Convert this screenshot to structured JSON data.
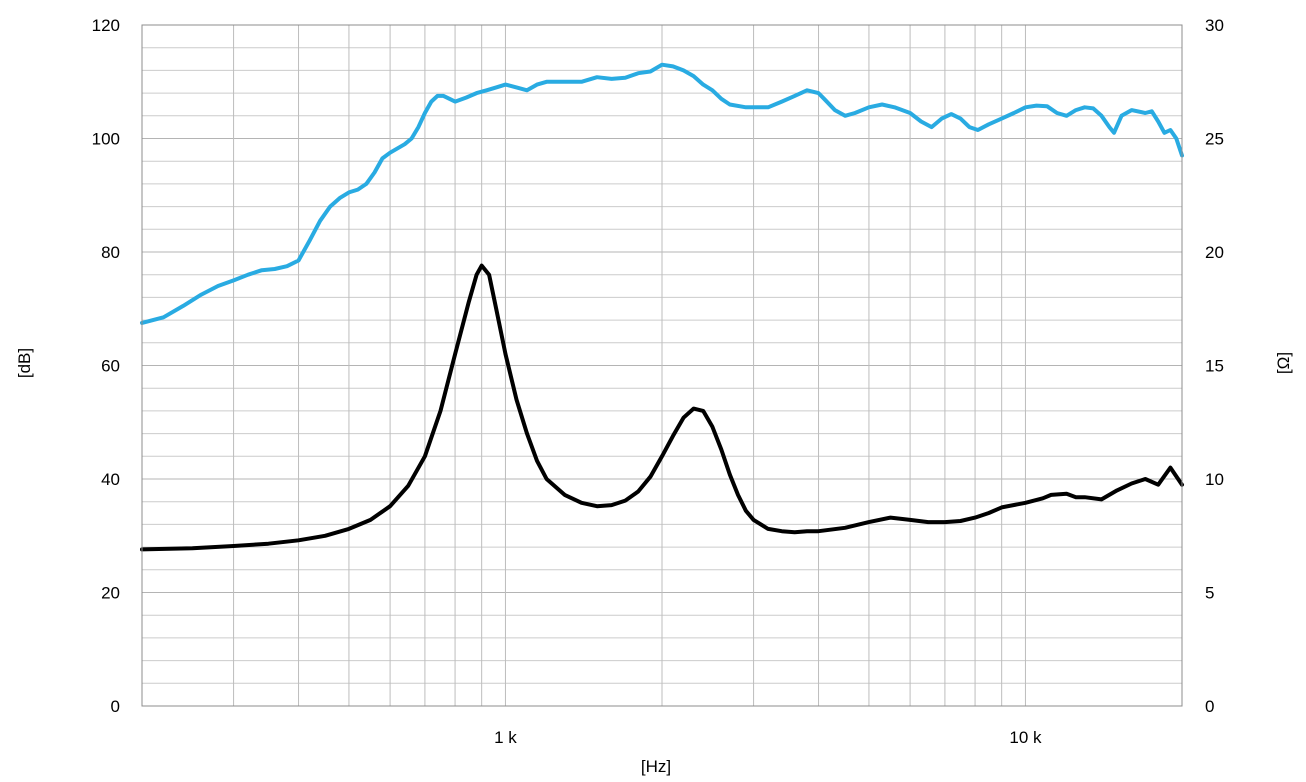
{
  "chart_data": {
    "type": "line",
    "title": "",
    "xlabel": "[Hz]",
    "ylabel_left": "[dB]",
    "ylabel_right": "[Ω]",
    "x_scale": "log",
    "xlim": [
      200,
      20000
    ],
    "ylim_left": [
      0,
      120
    ],
    "ylim_right": [
      0,
      30
    ],
    "grid": true,
    "legend": "none",
    "x_tick_labels": [
      {
        "value": 1000,
        "label": "1 k"
      },
      {
        "value": 10000,
        "label": "10 k"
      }
    ],
    "y_left_ticks": [
      0,
      20,
      40,
      60,
      80,
      100,
      120
    ],
    "y_right_ticks": [
      0,
      5,
      10,
      15,
      20,
      25,
      30
    ],
    "series": [
      {
        "axis": "left",
        "color": "#29abe2",
        "points": [
          [
            200,
            67.5
          ],
          [
            220,
            68.5
          ],
          [
            240,
            70.5
          ],
          [
            260,
            72.5
          ],
          [
            280,
            74
          ],
          [
            300,
            75
          ],
          [
            320,
            76
          ],
          [
            340,
            76.8
          ],
          [
            360,
            77
          ],
          [
            380,
            77.5
          ],
          [
            400,
            78.5
          ],
          [
            420,
            82
          ],
          [
            440,
            85.5
          ],
          [
            460,
            88
          ],
          [
            480,
            89.5
          ],
          [
            500,
            90.5
          ],
          [
            520,
            91
          ],
          [
            540,
            92
          ],
          [
            560,
            94
          ],
          [
            580,
            96.5
          ],
          [
            600,
            97.5
          ],
          [
            640,
            99
          ],
          [
            660,
            100
          ],
          [
            680,
            102
          ],
          [
            700,
            104.5
          ],
          [
            720,
            106.5
          ],
          [
            740,
            107.5
          ],
          [
            760,
            107.5
          ],
          [
            800,
            106.5
          ],
          [
            840,
            107.2
          ],
          [
            880,
            108
          ],
          [
            920,
            108.5
          ],
          [
            960,
            109
          ],
          [
            1000,
            109.5
          ],
          [
            1050,
            109
          ],
          [
            1100,
            108.5
          ],
          [
            1150,
            109.5
          ],
          [
            1200,
            110
          ],
          [
            1300,
            110
          ],
          [
            1400,
            110
          ],
          [
            1500,
            110.8
          ],
          [
            1600,
            110.5
          ],
          [
            1700,
            110.7
          ],
          [
            1800,
            111.5
          ],
          [
            1900,
            111.8
          ],
          [
            2000,
            113
          ],
          [
            2100,
            112.7
          ],
          [
            2200,
            112
          ],
          [
            2300,
            111
          ],
          [
            2400,
            109.5
          ],
          [
            2500,
            108.5
          ],
          [
            2600,
            107
          ],
          [
            2700,
            106
          ],
          [
            2900,
            105.5
          ],
          [
            3000,
            105.5
          ],
          [
            3200,
            105.5
          ],
          [
            3400,
            106.5
          ],
          [
            3600,
            107.5
          ],
          [
            3800,
            108.5
          ],
          [
            4000,
            108
          ],
          [
            4100,
            107
          ],
          [
            4300,
            105
          ],
          [
            4500,
            104
          ],
          [
            4700,
            104.5
          ],
          [
            5000,
            105.5
          ],
          [
            5300,
            106
          ],
          [
            5600,
            105.5
          ],
          [
            6000,
            104.5
          ],
          [
            6300,
            103
          ],
          [
            6600,
            102
          ],
          [
            6900,
            103.5
          ],
          [
            7200,
            104.3
          ],
          [
            7500,
            103.5
          ],
          [
            7800,
            102
          ],
          [
            8100,
            101.5
          ],
          [
            8500,
            102.5
          ],
          [
            9000,
            103.5
          ],
          [
            9500,
            104.5
          ],
          [
            10000,
            105.5
          ],
          [
            10500,
            105.8
          ],
          [
            11000,
            105.7
          ],
          [
            11500,
            104.5
          ],
          [
            12000,
            104
          ],
          [
            12500,
            105
          ],
          [
            13000,
            105.5
          ],
          [
            13500,
            105.3
          ],
          [
            14000,
            104
          ],
          [
            14500,
            102
          ],
          [
            14800,
            101
          ],
          [
            15300,
            104
          ],
          [
            16000,
            105
          ],
          [
            17000,
            104.5
          ],
          [
            17500,
            104.8
          ],
          [
            18000,
            103
          ],
          [
            18500,
            101
          ],
          [
            19000,
            101.5
          ],
          [
            19500,
            100
          ],
          [
            20000,
            97
          ]
        ]
      },
      {
        "axis": "right",
        "color": "#000000",
        "points": [
          [
            200,
            6.9
          ],
          [
            250,
            6.95
          ],
          [
            300,
            7.05
          ],
          [
            350,
            7.15
          ],
          [
            400,
            7.3
          ],
          [
            450,
            7.5
          ],
          [
            500,
            7.8
          ],
          [
            550,
            8.2
          ],
          [
            600,
            8.8
          ],
          [
            650,
            9.7
          ],
          [
            700,
            11
          ],
          [
            750,
            13
          ],
          [
            800,
            15.5
          ],
          [
            850,
            17.8
          ],
          [
            880,
            19
          ],
          [
            900,
            19.4
          ],
          [
            930,
            19
          ],
          [
            960,
            17.5
          ],
          [
            1000,
            15.5
          ],
          [
            1050,
            13.5
          ],
          [
            1100,
            12
          ],
          [
            1150,
            10.8
          ],
          [
            1200,
            10
          ],
          [
            1300,
            9.3
          ],
          [
            1400,
            8.95
          ],
          [
            1500,
            8.8
          ],
          [
            1600,
            8.85
          ],
          [
            1700,
            9.05
          ],
          [
            1800,
            9.45
          ],
          [
            1900,
            10.1
          ],
          [
            2000,
            11
          ],
          [
            2100,
            11.9
          ],
          [
            2200,
            12.7
          ],
          [
            2300,
            13.1
          ],
          [
            2400,
            13
          ],
          [
            2500,
            12.3
          ],
          [
            2600,
            11.3
          ],
          [
            2700,
            10.2
          ],
          [
            2800,
            9.3
          ],
          [
            2900,
            8.6
          ],
          [
            3000,
            8.2
          ],
          [
            3200,
            7.8
          ],
          [
            3400,
            7.7
          ],
          [
            3600,
            7.65
          ],
          [
            3800,
            7.7
          ],
          [
            4000,
            7.7
          ],
          [
            4500,
            7.85
          ],
          [
            5000,
            8.1
          ],
          [
            5500,
            8.3
          ],
          [
            6000,
            8.2
          ],
          [
            6500,
            8.1
          ],
          [
            7000,
            8.1
          ],
          [
            7500,
            8.15
          ],
          [
            8000,
            8.3
          ],
          [
            8500,
            8.5
          ],
          [
            9000,
            8.75
          ],
          [
            10000,
            8.95
          ],
          [
            10800,
            9.15
          ],
          [
            11200,
            9.3
          ],
          [
            12000,
            9.35
          ],
          [
            12500,
            9.2
          ],
          [
            13000,
            9.2
          ],
          [
            14000,
            9.1
          ],
          [
            15000,
            9.5
          ],
          [
            16000,
            9.8
          ],
          [
            17000,
            10
          ],
          [
            18000,
            9.75
          ],
          [
            19000,
            10.5
          ],
          [
            20000,
            9.75
          ]
        ]
      }
    ]
  }
}
